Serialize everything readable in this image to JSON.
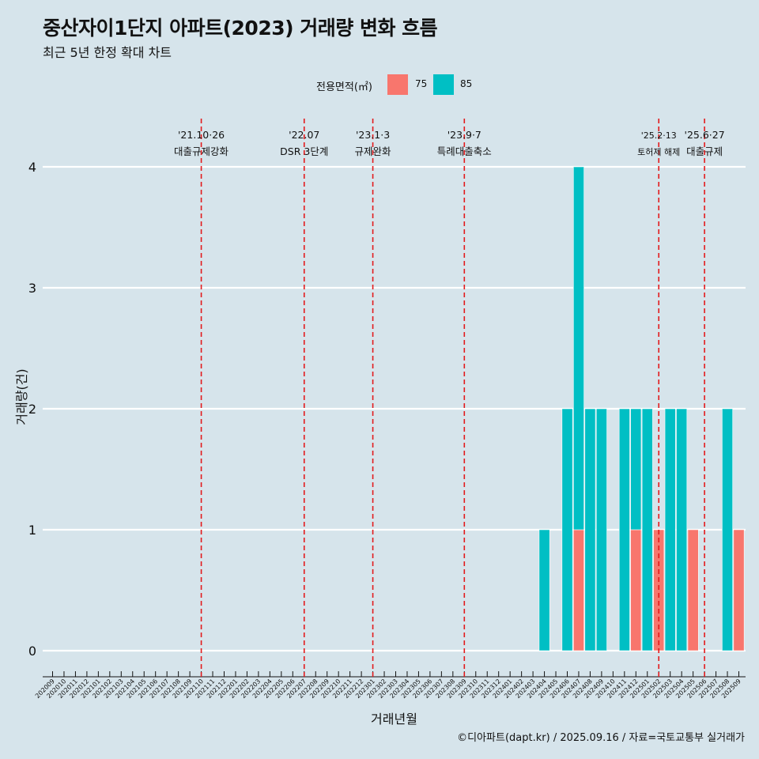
{
  "title": "중산자이1단지 아파트(2023) 거래량 변화 흐름",
  "subtitle": "최근 5년 한정 확대 차트",
  "caption": "©디아파트(dapt.kr) / 2025.09.16 / 자료=국토교통부 실거래가",
  "legend": {
    "title": "전용면적(㎡)",
    "items": [
      {
        "label": "75",
        "color": "#f8766d"
      },
      {
        "label": "85",
        "color": "#00bfc4"
      }
    ]
  },
  "chart_data": {
    "type": "bar",
    "stacked": true,
    "xlabel": "거래년월",
    "ylabel": "거래량(건)",
    "ylim": [
      0,
      4
    ],
    "yticks": [
      0,
      1,
      2,
      3,
      4
    ],
    "grid": true,
    "categories": [
      "202009",
      "202010",
      "202011",
      "202012",
      "202101",
      "202102",
      "202103",
      "202104",
      "202105",
      "202106",
      "202107",
      "202108",
      "202109",
      "202110",
      "202111",
      "202112",
      "202201",
      "202202",
      "202203",
      "202204",
      "202205",
      "202206",
      "202207",
      "202208",
      "202209",
      "202210",
      "202211",
      "202212",
      "202301",
      "202302",
      "202303",
      "202304",
      "202305",
      "202306",
      "202307",
      "202308",
      "202309",
      "202310",
      "202311",
      "202312",
      "202401",
      "202402",
      "202403",
      "202404",
      "202405",
      "202406",
      "202407",
      "202408",
      "202409",
      "202410",
      "202411",
      "202412",
      "202501",
      "202502",
      "202503",
      "202504",
      "202505",
      "202506",
      "202507",
      "202508",
      "202509"
    ],
    "series": [
      {
        "name": "75",
        "color": "#f8766d",
        "values": {
          "202407": 1,
          "202412": 1,
          "202502": 1,
          "202505": 1,
          "202509": 1
        }
      },
      {
        "name": "85",
        "color": "#00bfc4",
        "values": {
          "202404": 1,
          "202406": 2,
          "202407": 3,
          "202408": 2,
          "202409": 2,
          "202411": 2,
          "202412": 1,
          "202501": 2,
          "202502": 0,
          "202503": 2,
          "202504": 2,
          "202508": 2
        }
      }
    ],
    "events": [
      {
        "month": "202110",
        "line1": "'21.10·26",
        "line2": "대출규제강화"
      },
      {
        "month": "202207",
        "line1": "'22.07",
        "line2": "DSR 3단계"
      },
      {
        "month": "202301",
        "line1": "'23.1·3",
        "line2": "규제완화"
      },
      {
        "month": "202309",
        "line1": "'23.9·7",
        "line2": "특례대출축소"
      },
      {
        "month": "202502",
        "line1": "'25.2·13",
        "line2": "토허제 해제"
      },
      {
        "month": "202506",
        "line1": "'25.6·27",
        "line2": "대출규제"
      }
    ]
  }
}
